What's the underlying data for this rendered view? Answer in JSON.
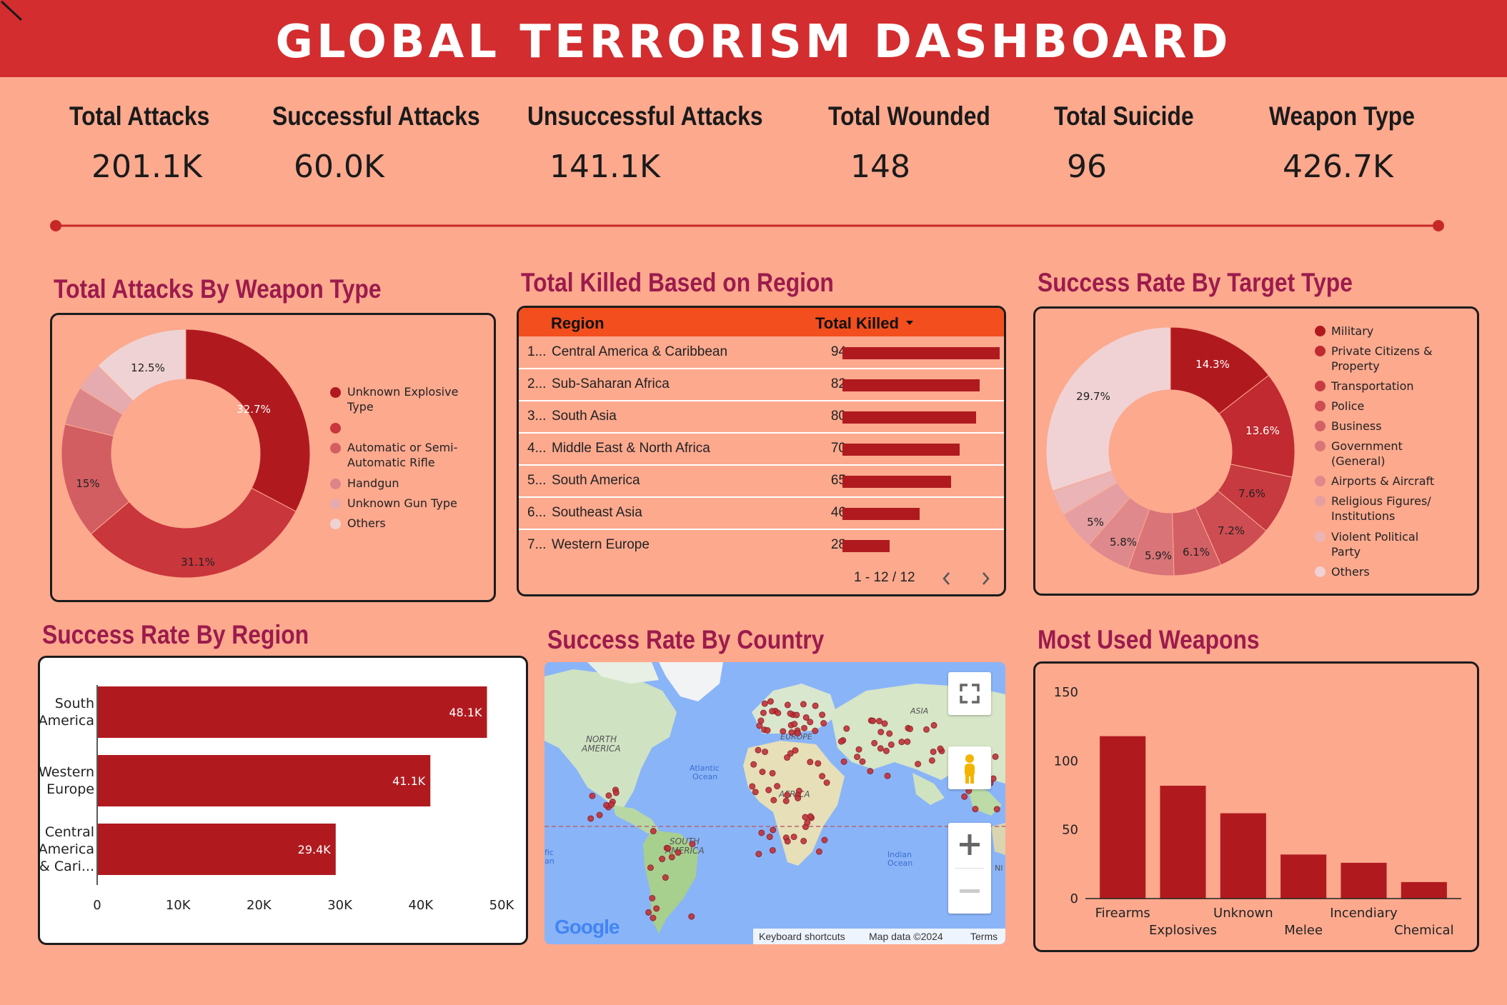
{
  "header": {
    "title": "GLOBAL TERRORISM DASHBOARD"
  },
  "kpis": [
    {
      "label": "Total Attacks",
      "value": "201.1K"
    },
    {
      "label": "Successful Attacks",
      "value": "60.0K"
    },
    {
      "label": "Unsuccessful Attacks",
      "value": "141.1K"
    },
    {
      "label": "Total Wounded",
      "value": "148"
    },
    {
      "label": "Total Suicide",
      "value": "96"
    },
    {
      "label": "Weapon Type",
      "value": "426.7K"
    }
  ],
  "weapon_donut": {
    "title": "Total Attacks By Weapon Type",
    "legend": [
      "Unknown Explosive Type",
      "",
      "Automatic or Semi-Automatic Rifle",
      "Handgun",
      "Unknown Gun Type",
      "Others"
    ],
    "labels": [
      "32.7%",
      "31.1%",
      "15%",
      "12.5%"
    ],
    "colors": {
      "c1": "#b01a1f",
      "c2": "#c9363b",
      "c3": "#d25e62",
      "c4": "#db8589",
      "c5": "#e5abae",
      "c6": "#efd2d3"
    }
  },
  "region_table": {
    "title": "Total Killed Based on Region",
    "col_region": "Region",
    "col_killed": "Total Killed",
    "sort_icon": "sort-down-icon",
    "rows": [
      {
        "rank": "1...",
        "region": "Central America & Caribbean",
        "value": "94"
      },
      {
        "rank": "2...",
        "region": "Sub-Saharan Africa",
        "value": "82"
      },
      {
        "rank": "3...",
        "region": "South Asia",
        "value": "80"
      },
      {
        "rank": "4...",
        "region": "Middle East & North Africa",
        "value": "70"
      },
      {
        "rank": "5...",
        "region": "South America",
        "value": "65"
      },
      {
        "rank": "6...",
        "region": "Southeast Asia",
        "value": "46"
      },
      {
        "rank": "7...",
        "region": "Western Europe",
        "value": "28"
      }
    ],
    "pagination": "1 - 12 / 12",
    "header_color": "#f24e1e"
  },
  "target_donut": {
    "title": "Success Rate By Target Type",
    "legend": [
      "Military",
      "Private Citizens & Property",
      "Transportation",
      "Police",
      "Business",
      "Government (General)",
      "Airports & Aircraft",
      "Religious Figures/ Institutions",
      "Violent Political Party",
      "Others"
    ],
    "labels": [
      "14.3%",
      "13.6%",
      "7.6%",
      "7.2%",
      "6.1%",
      "5.9%",
      "5.8%",
      "5%",
      "29.7%"
    ]
  },
  "region_bars": {
    "title": "Success Rate By Region"
  },
  "country_map": {
    "title": "Success Rate By Country",
    "labels": {
      "north_america": "NORTH AMERICA",
      "south_america": "SOUTH AMERICA",
      "europe": "EUROPE",
      "asia": "ASIA",
      "africa": "AFRICA",
      "atlantic": "Atlantic Ocean",
      "indian": "Indian Ocean",
      "pacific": "fic an",
      "ni": "NI"
    },
    "footer": {
      "shortcuts": "Keyboard shortcuts",
      "map_data": "Map data ©2024",
      "terms": "Terms"
    },
    "brand": "Google",
    "controls": [
      "fullscreen-icon",
      "pegman-icon",
      "zoom-in-icon",
      "zoom-out-icon"
    ]
  },
  "weapons_bars": {
    "title": "Most Used Weapons"
  },
  "chart_data": [
    {
      "type": "pie",
      "title": "Total Attacks By Weapon Type",
      "labels": [
        "Unknown Explosive Type",
        "",
        "Automatic or Semi-Automatic Rifle",
        "Handgun",
        "Unknown Gun Type",
        "Others"
      ],
      "values": [
        32.7,
        31.1,
        15,
        5,
        3.7,
        12.5
      ],
      "colors": [
        "#b01a1f",
        "#c9363b",
        "#d25e62",
        "#db8589",
        "#e5abae",
        "#efd2d3"
      ]
    },
    {
      "type": "table",
      "title": "Total Killed Based on Region",
      "categories": [
        "Central America & Caribbean",
        "Sub-Saharan Africa",
        "South Asia",
        "Middle East & North Africa",
        "South America",
        "Southeast Asia",
        "Western Europe"
      ],
      "values": [
        94,
        82,
        80,
        70,
        65,
        46,
        28
      ],
      "max": 94
    },
    {
      "type": "pie",
      "title": "Success Rate By Target Type",
      "labels": [
        "Military",
        "Private Citizens & Property",
        "Transportation",
        "Police",
        "Business",
        "Government (General)",
        "Airports & Aircraft",
        "Religious Figures/ Institutions",
        "Violent Political Party",
        "Others"
      ],
      "values": [
        14.3,
        13.6,
        7.6,
        7.2,
        6.1,
        5.9,
        5.8,
        5,
        3.3,
        29.7
      ],
      "colors": [
        "#b01a1f",
        "#c02a30",
        "#c73a40",
        "#cd4d52",
        "#d36064",
        "#d97478",
        "#df898c",
        "#e59ea1",
        "#ebb4b6",
        "#f0d2d4"
      ]
    },
    {
      "type": "bar",
      "orientation": "horizontal",
      "title": "Success Rate By Region",
      "categories": [
        [
          "South",
          "America"
        ],
        [
          "Western",
          "Europe"
        ],
        [
          "Central",
          "America",
          "& Cari..."
        ]
      ],
      "values": [
        48100,
        41100,
        29400
      ],
      "value_labels": [
        "48.1K",
        "41.1K",
        "29.4K"
      ],
      "xlim": [
        0,
        50000
      ],
      "ticks": [
        "0",
        "10K",
        "20K",
        "30K",
        "40K",
        "50K"
      ],
      "color": "#b01a1f"
    },
    {
      "type": "bar",
      "title": "Most Used Weapons",
      "categories": [
        "Firearms",
        "Explosives",
        "Unknown",
        "Melee",
        "Incendiary",
        "Chemical"
      ],
      "values": [
        118,
        82,
        62,
        32,
        26,
        12
      ],
      "ylim": [
        0,
        150
      ],
      "ticks": [
        "0",
        "50",
        "100",
        "150"
      ],
      "color": "#b01a1f"
    }
  ]
}
